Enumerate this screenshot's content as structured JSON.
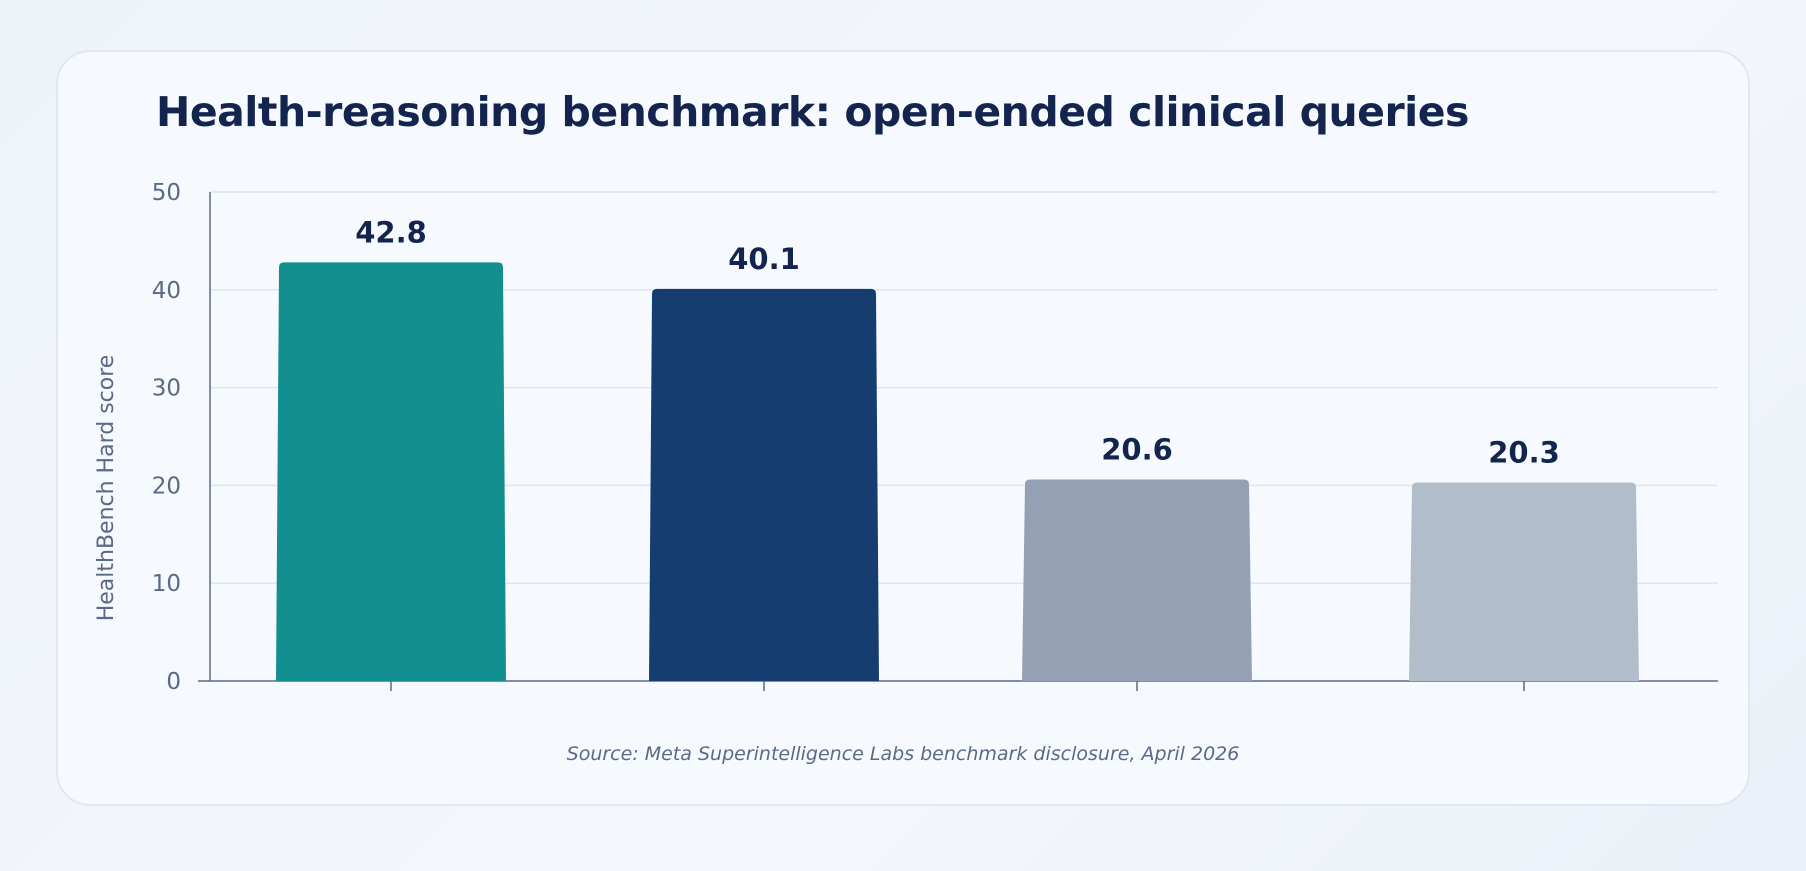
{
  "chart_data": {
    "type": "bar",
    "title": "Health-reasoning benchmark: open-ended clinical queries",
    "ylabel": "HealthBench Hard score",
    "xlabel": "",
    "ylim": [
      0,
      50
    ],
    "yticks": [
      0,
      10,
      20,
      30,
      40,
      50
    ],
    "grid": true,
    "values": [
      42.8,
      40.1,
      20.6,
      20.3
    ],
    "value_labels": [
      "42.8",
      "40.1",
      "20.6",
      "20.3"
    ],
    "colors": [
      "#138f8f",
      "#163d70",
      "#94a1b5",
      "#b2bdcc"
    ],
    "source": "Source: Meta Superintelligence Labs benchmark disclosure, April 2026"
  }
}
